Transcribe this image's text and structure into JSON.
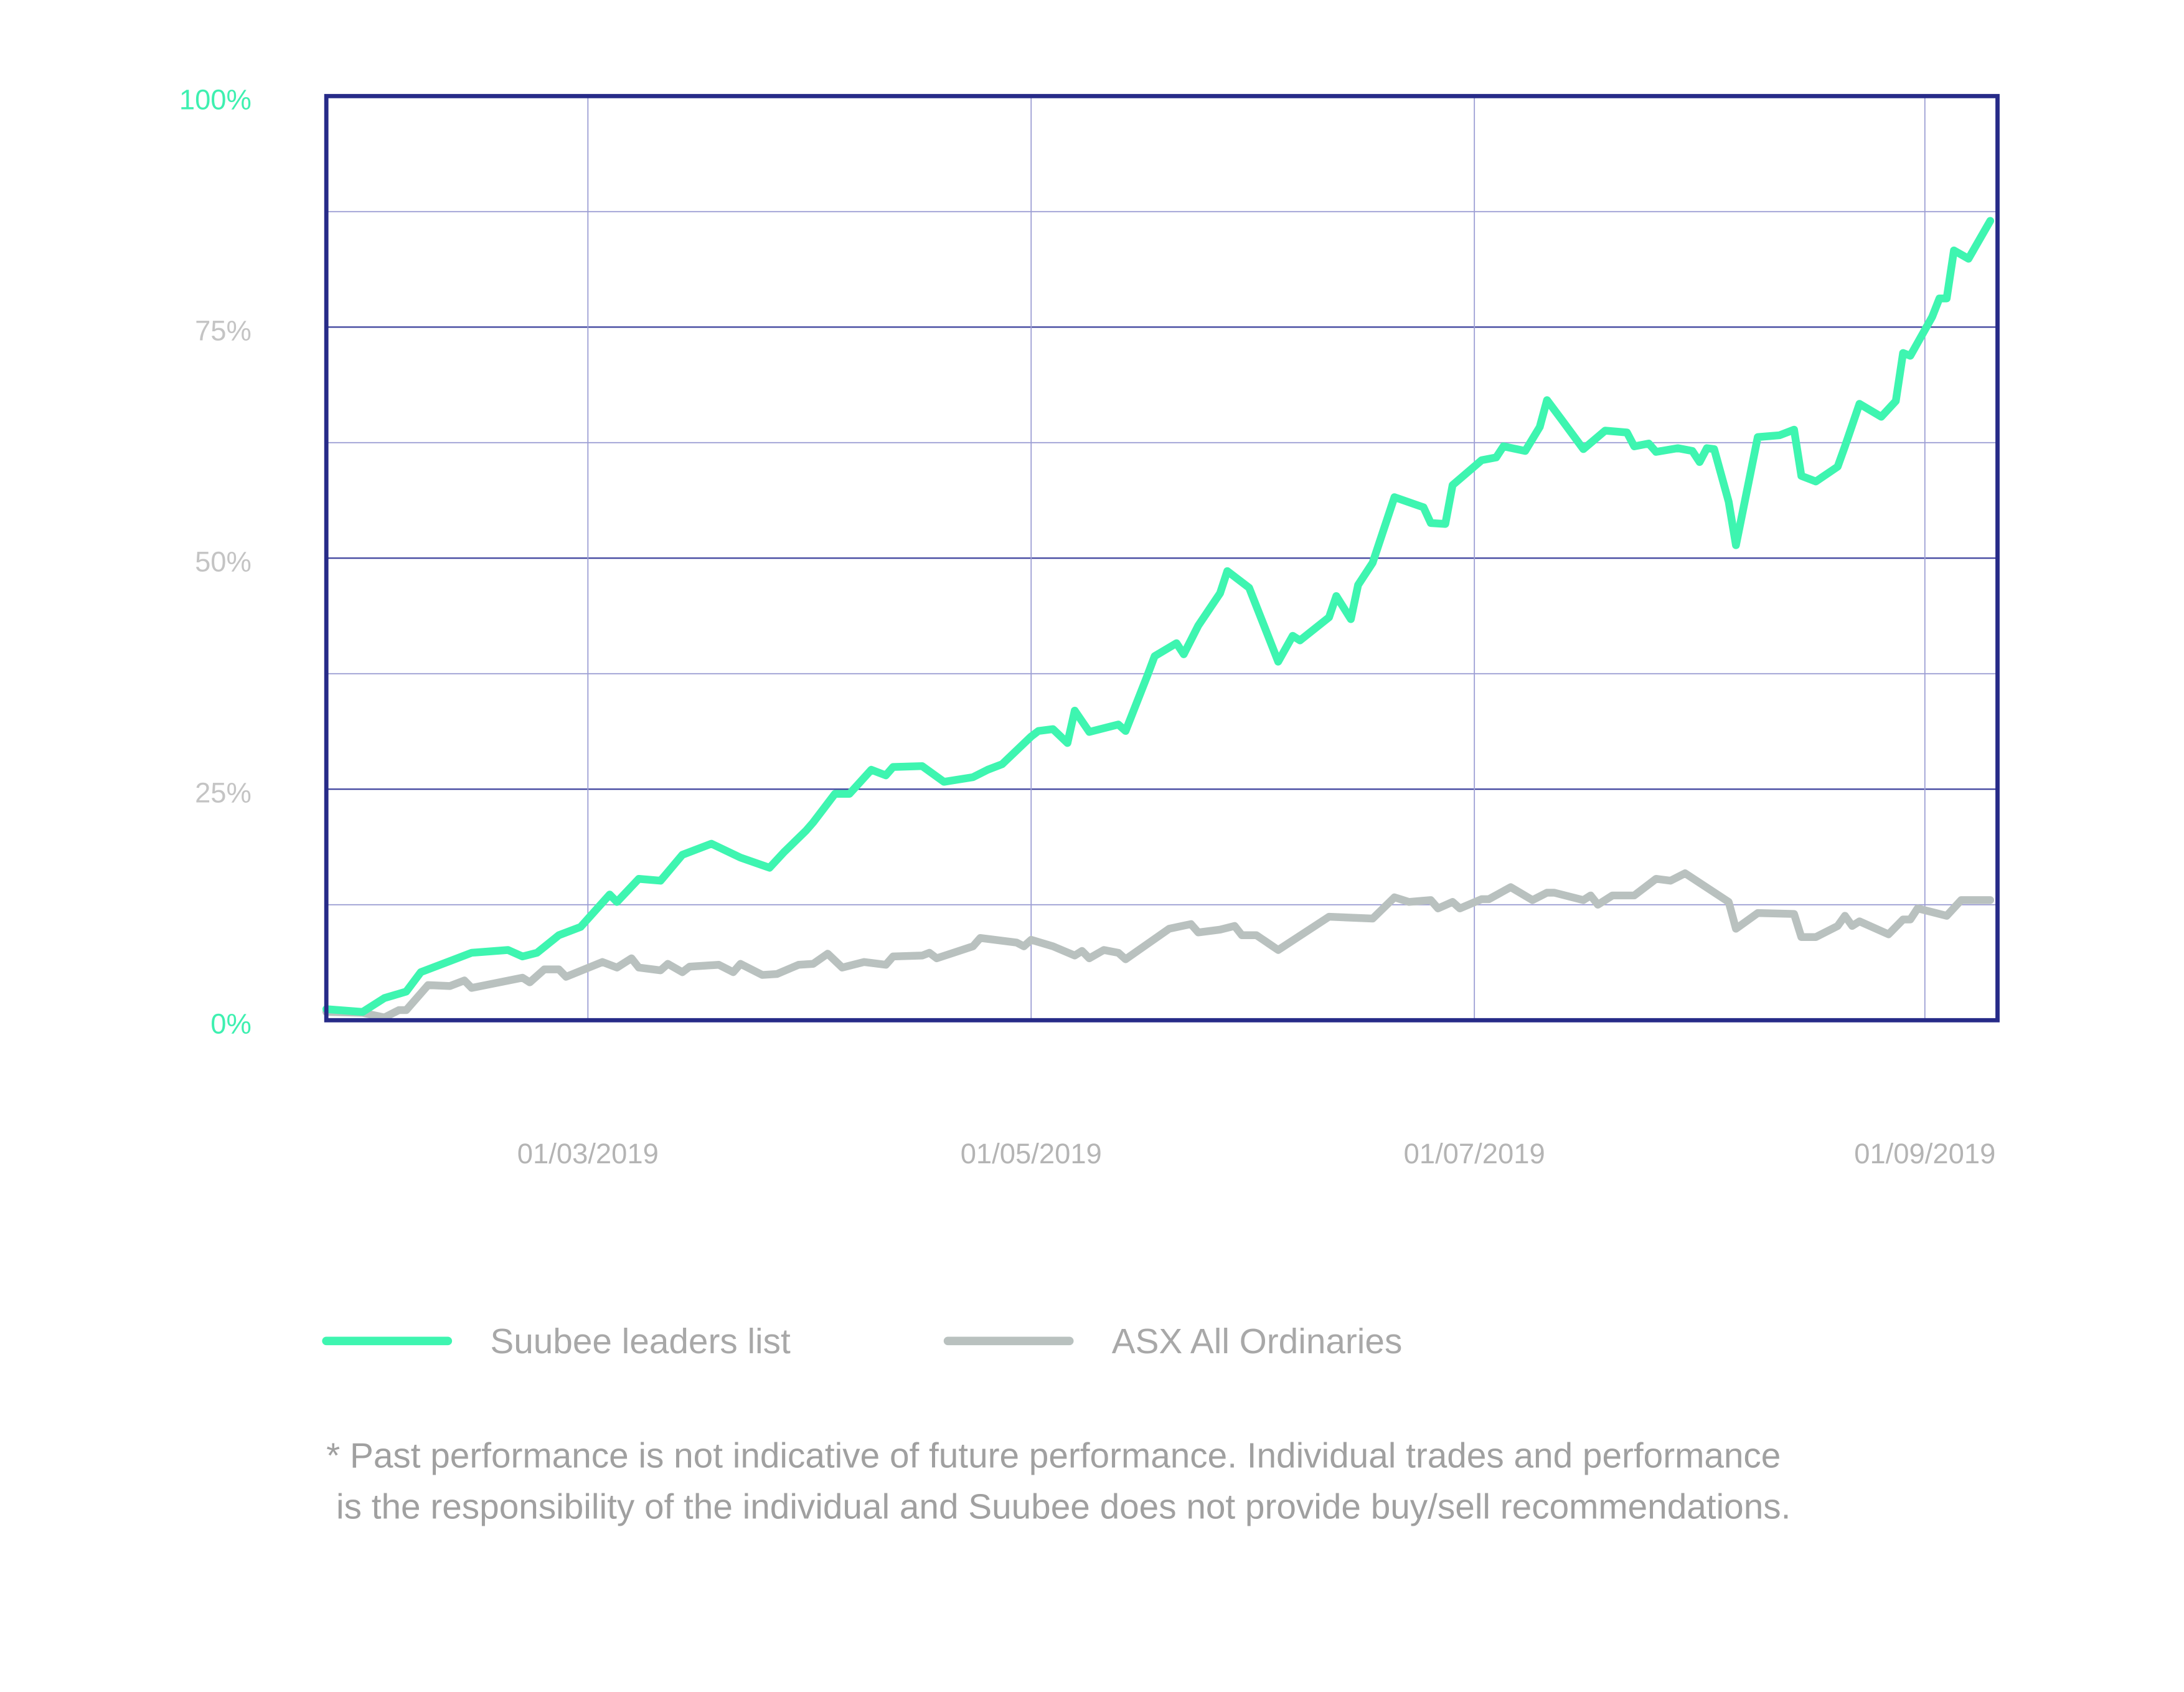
{
  "chart_data": {
    "type": "line",
    "xlim": [
      "2019-01-24",
      "2019-09-11"
    ],
    "xticks": [
      {
        "value": "2019-03-01",
        "label": "01/03/2019"
      },
      {
        "value": "2019-05-01",
        "label": "01/05/2019"
      },
      {
        "value": "2019-07-01",
        "label": "01/07/2019"
      },
      {
        "value": "2019-09-01",
        "label": "01/09/2019"
      }
    ],
    "ylim": [
      0,
      100
    ],
    "yticks": [
      {
        "value": 0,
        "label": "0%"
      },
      {
        "value": 25,
        "label": "25%"
      },
      {
        "value": 50,
        "label": "50%"
      },
      {
        "value": 75,
        "label": "75%"
      },
      {
        "value": 100,
        "label": "100%"
      }
    ],
    "ytick_colors": [
      "#3ef0b0",
      "#c4c4c4",
      "#c4c4c4",
      "#c4c4c4",
      "#3ef0b0"
    ],
    "minor_yticks": [
      12.5,
      37.5,
      62.5,
      87.5
    ],
    "grid": true,
    "frame_color": "#272b88",
    "legend": "bottom-left",
    "series": [
      {
        "name": "Suubee leaders list",
        "color": "#3ef5b0",
        "x": [
          "2019-01-24",
          "2019-01-29",
          "2019-02-01",
          "2019-02-04",
          "2019-02-06",
          "2019-02-10",
          "2019-02-13",
          "2019-02-18",
          "2019-02-20",
          "2019-02-22",
          "2019-02-25",
          "2019-02-28",
          "2019-03-04",
          "2019-03-05",
          "2019-03-08",
          "2019-03-11",
          "2019-03-14",
          "2019-03-18",
          "2019-03-22",
          "2019-03-26",
          "2019-03-28",
          "2019-03-31",
          "2019-04-01",
          "2019-04-04",
          "2019-04-06",
          "2019-04-09",
          "2019-04-11",
          "2019-04-12",
          "2019-04-16",
          "2019-04-19",
          "2019-04-23",
          "2019-04-25",
          "2019-04-27",
          "2019-05-01",
          "2019-05-02",
          "2019-05-04",
          "2019-05-06",
          "2019-05-07",
          "2019-05-09",
          "2019-05-13",
          "2019-05-14",
          "2019-05-17",
          "2019-05-18",
          "2019-05-21",
          "2019-05-22",
          "2019-05-24",
          "2019-05-27",
          "2019-05-28",
          "2019-05-31",
          "2019-06-04",
          "2019-06-06",
          "2019-06-07",
          "2019-06-11",
          "2019-06-12",
          "2019-06-14",
          "2019-06-15",
          "2019-06-17",
          "2019-06-20",
          "2019-06-24",
          "2019-06-25",
          "2019-06-27",
          "2019-06-28",
          "2019-07-02",
          "2019-07-04",
          "2019-07-05",
          "2019-07-08",
          "2019-07-10",
          "2019-07-11",
          "2019-07-13",
          "2019-07-16",
          "2019-07-19",
          "2019-07-22",
          "2019-07-23",
          "2019-07-25",
          "2019-07-26",
          "2019-07-29",
          "2019-07-31",
          "2019-08-01",
          "2019-08-02",
          "2019-08-03",
          "2019-08-05",
          "2019-08-06",
          "2019-08-09",
          "2019-08-12",
          "2019-08-14",
          "2019-08-15",
          "2019-08-17",
          "2019-08-20",
          "2019-08-21",
          "2019-08-23",
          "2019-08-26",
          "2019-08-28",
          "2019-08-29",
          "2019-08-30",
          "2019-09-02",
          "2019-09-03",
          "2019-09-04",
          "2019-09-05",
          "2019-09-07",
          "2019-09-10"
        ],
        "values": [
          1.2,
          0.9,
          2.4,
          3.1,
          5.2,
          6.4,
          7.3,
          7.6,
          6.9,
          7.3,
          9.2,
          10.1,
          13.6,
          12.8,
          15.3,
          15.1,
          17.9,
          19.1,
          17.6,
          16.5,
          18.2,
          20.5,
          21.4,
          24.5,
          24.5,
          27.1,
          26.5,
          27.4,
          27.5,
          25.8,
          26.3,
          27.1,
          27.7,
          30.7,
          31.3,
          31.5,
          30.0,
          33.5,
          31.2,
          32.0,
          31.3,
          37.3,
          39.4,
          40.8,
          39.6,
          42.7,
          46.2,
          48.6,
          46.8,
          38.8,
          41.6,
          41.1,
          43.6,
          45.9,
          43.4,
          47.1,
          49.5,
          56.6,
          55.5,
          53.8,
          53.7,
          57.9,
          60.6,
          60.9,
          62.1,
          61.6,
          64.2,
          67.1,
          65.0,
          61.8,
          63.8,
          63.6,
          62.1,
          62.4,
          61.5,
          61.9,
          61.6,
          60.4,
          61.9,
          61.8,
          56.1,
          51.4,
          63.1,
          63.3,
          63.9,
          58.9,
          58.3,
          59.9,
          62.1,
          66.7,
          65.3,
          67.0,
          72.2,
          71.9,
          76.1,
          78.1,
          78.1,
          83.3,
          82.4,
          86.5
        ]
      },
      {
        "name": "ASX All Ordinaries",
        "color": "#b9c1bf",
        "x": [
          "2019-01-24",
          "2019-01-29",
          "2019-02-01",
          "2019-02-03",
          "2019-02-04",
          "2019-02-07",
          "2019-02-10",
          "2019-02-12",
          "2019-02-13",
          "2019-02-20",
          "2019-02-21",
          "2019-02-23",
          "2019-02-25",
          "2019-02-26",
          "2019-03-03",
          "2019-03-05",
          "2019-03-07",
          "2019-03-08",
          "2019-03-11",
          "2019-03-12",
          "2019-03-14",
          "2019-03-15",
          "2019-03-19",
          "2019-03-21",
          "2019-03-22",
          "2019-03-25",
          "2019-03-27",
          "2019-03-30",
          "2019-04-01",
          "2019-04-03",
          "2019-04-05",
          "2019-04-08",
          "2019-04-11",
          "2019-04-12",
          "2019-04-16",
          "2019-04-17",
          "2019-04-18",
          "2019-04-23",
          "2019-04-24",
          "2019-04-29",
          "2019-04-30",
          "2019-05-01",
          "2019-05-04",
          "2019-05-07",
          "2019-05-08",
          "2019-05-09",
          "2019-05-11",
          "2019-05-13",
          "2019-05-14",
          "2019-05-20",
          "2019-05-23",
          "2019-05-24",
          "2019-05-27",
          "2019-05-29",
          "2019-05-30",
          "2019-06-01",
          "2019-06-04",
          "2019-06-11",
          "2019-06-17",
          "2019-06-20",
          "2019-06-22",
          "2019-06-25",
          "2019-06-26",
          "2019-06-28",
          "2019-06-29",
          "2019-07-02",
          "2019-07-03",
          "2019-07-06",
          "2019-07-09",
          "2019-07-11",
          "2019-07-12",
          "2019-07-16",
          "2019-07-17",
          "2019-07-18",
          "2019-07-20",
          "2019-07-23",
          "2019-07-26",
          "2019-07-28",
          "2019-07-30",
          "2019-08-05",
          "2019-08-06",
          "2019-08-09",
          "2019-08-14",
          "2019-08-15",
          "2019-08-17",
          "2019-08-20",
          "2019-08-21",
          "2019-08-22",
          "2019-08-23",
          "2019-08-27",
          "2019-08-29",
          "2019-08-30",
          "2019-08-31",
          "2019-09-04",
          "2019-09-06",
          "2019-09-10"
        ],
        "values": [
          0.9,
          0.8,
          0.3,
          1.1,
          1.1,
          3.8,
          3.7,
          4.3,
          3.5,
          4.6,
          4.1,
          5.5,
          5.5,
          4.7,
          6.3,
          5.7,
          6.7,
          5.7,
          5.4,
          6.1,
          5.2,
          5.8,
          6.0,
          5.2,
          6.1,
          4.9,
          5.0,
          6.0,
          6.1,
          7.2,
          5.7,
          6.3,
          6.0,
          6.9,
          7.0,
          7.3,
          6.7,
          8.0,
          8.9,
          8.4,
          8.0,
          8.7,
          8.0,
          7.0,
          7.5,
          6.7,
          7.6,
          7.3,
          6.6,
          9.9,
          10.4,
          9.5,
          9.8,
          10.2,
          9.2,
          9.2,
          7.6,
          11.2,
          11.0,
          13.3,
          12.8,
          13.0,
          12.1,
          12.8,
          12.1,
          13.1,
          13.1,
          14.4,
          13.0,
          13.8,
          13.8,
          13.0,
          13.5,
          12.5,
          13.5,
          13.5,
          15.3,
          15.1,
          15.9,
          12.8,
          9.9,
          11.6,
          11.5,
          9.0,
          9.0,
          10.2,
          11.3,
          10.2,
          10.7,
          9.3,
          10.9,
          10.9,
          12.1,
          11.3,
          13.0,
          13.0
        ]
      }
    ],
    "footnote": [
      "* Past performance is not indicative of future performance. Individual trades and performance",
      "is the responsibility of the individual and Suubee does not provide buy/sell recommendations."
    ]
  }
}
